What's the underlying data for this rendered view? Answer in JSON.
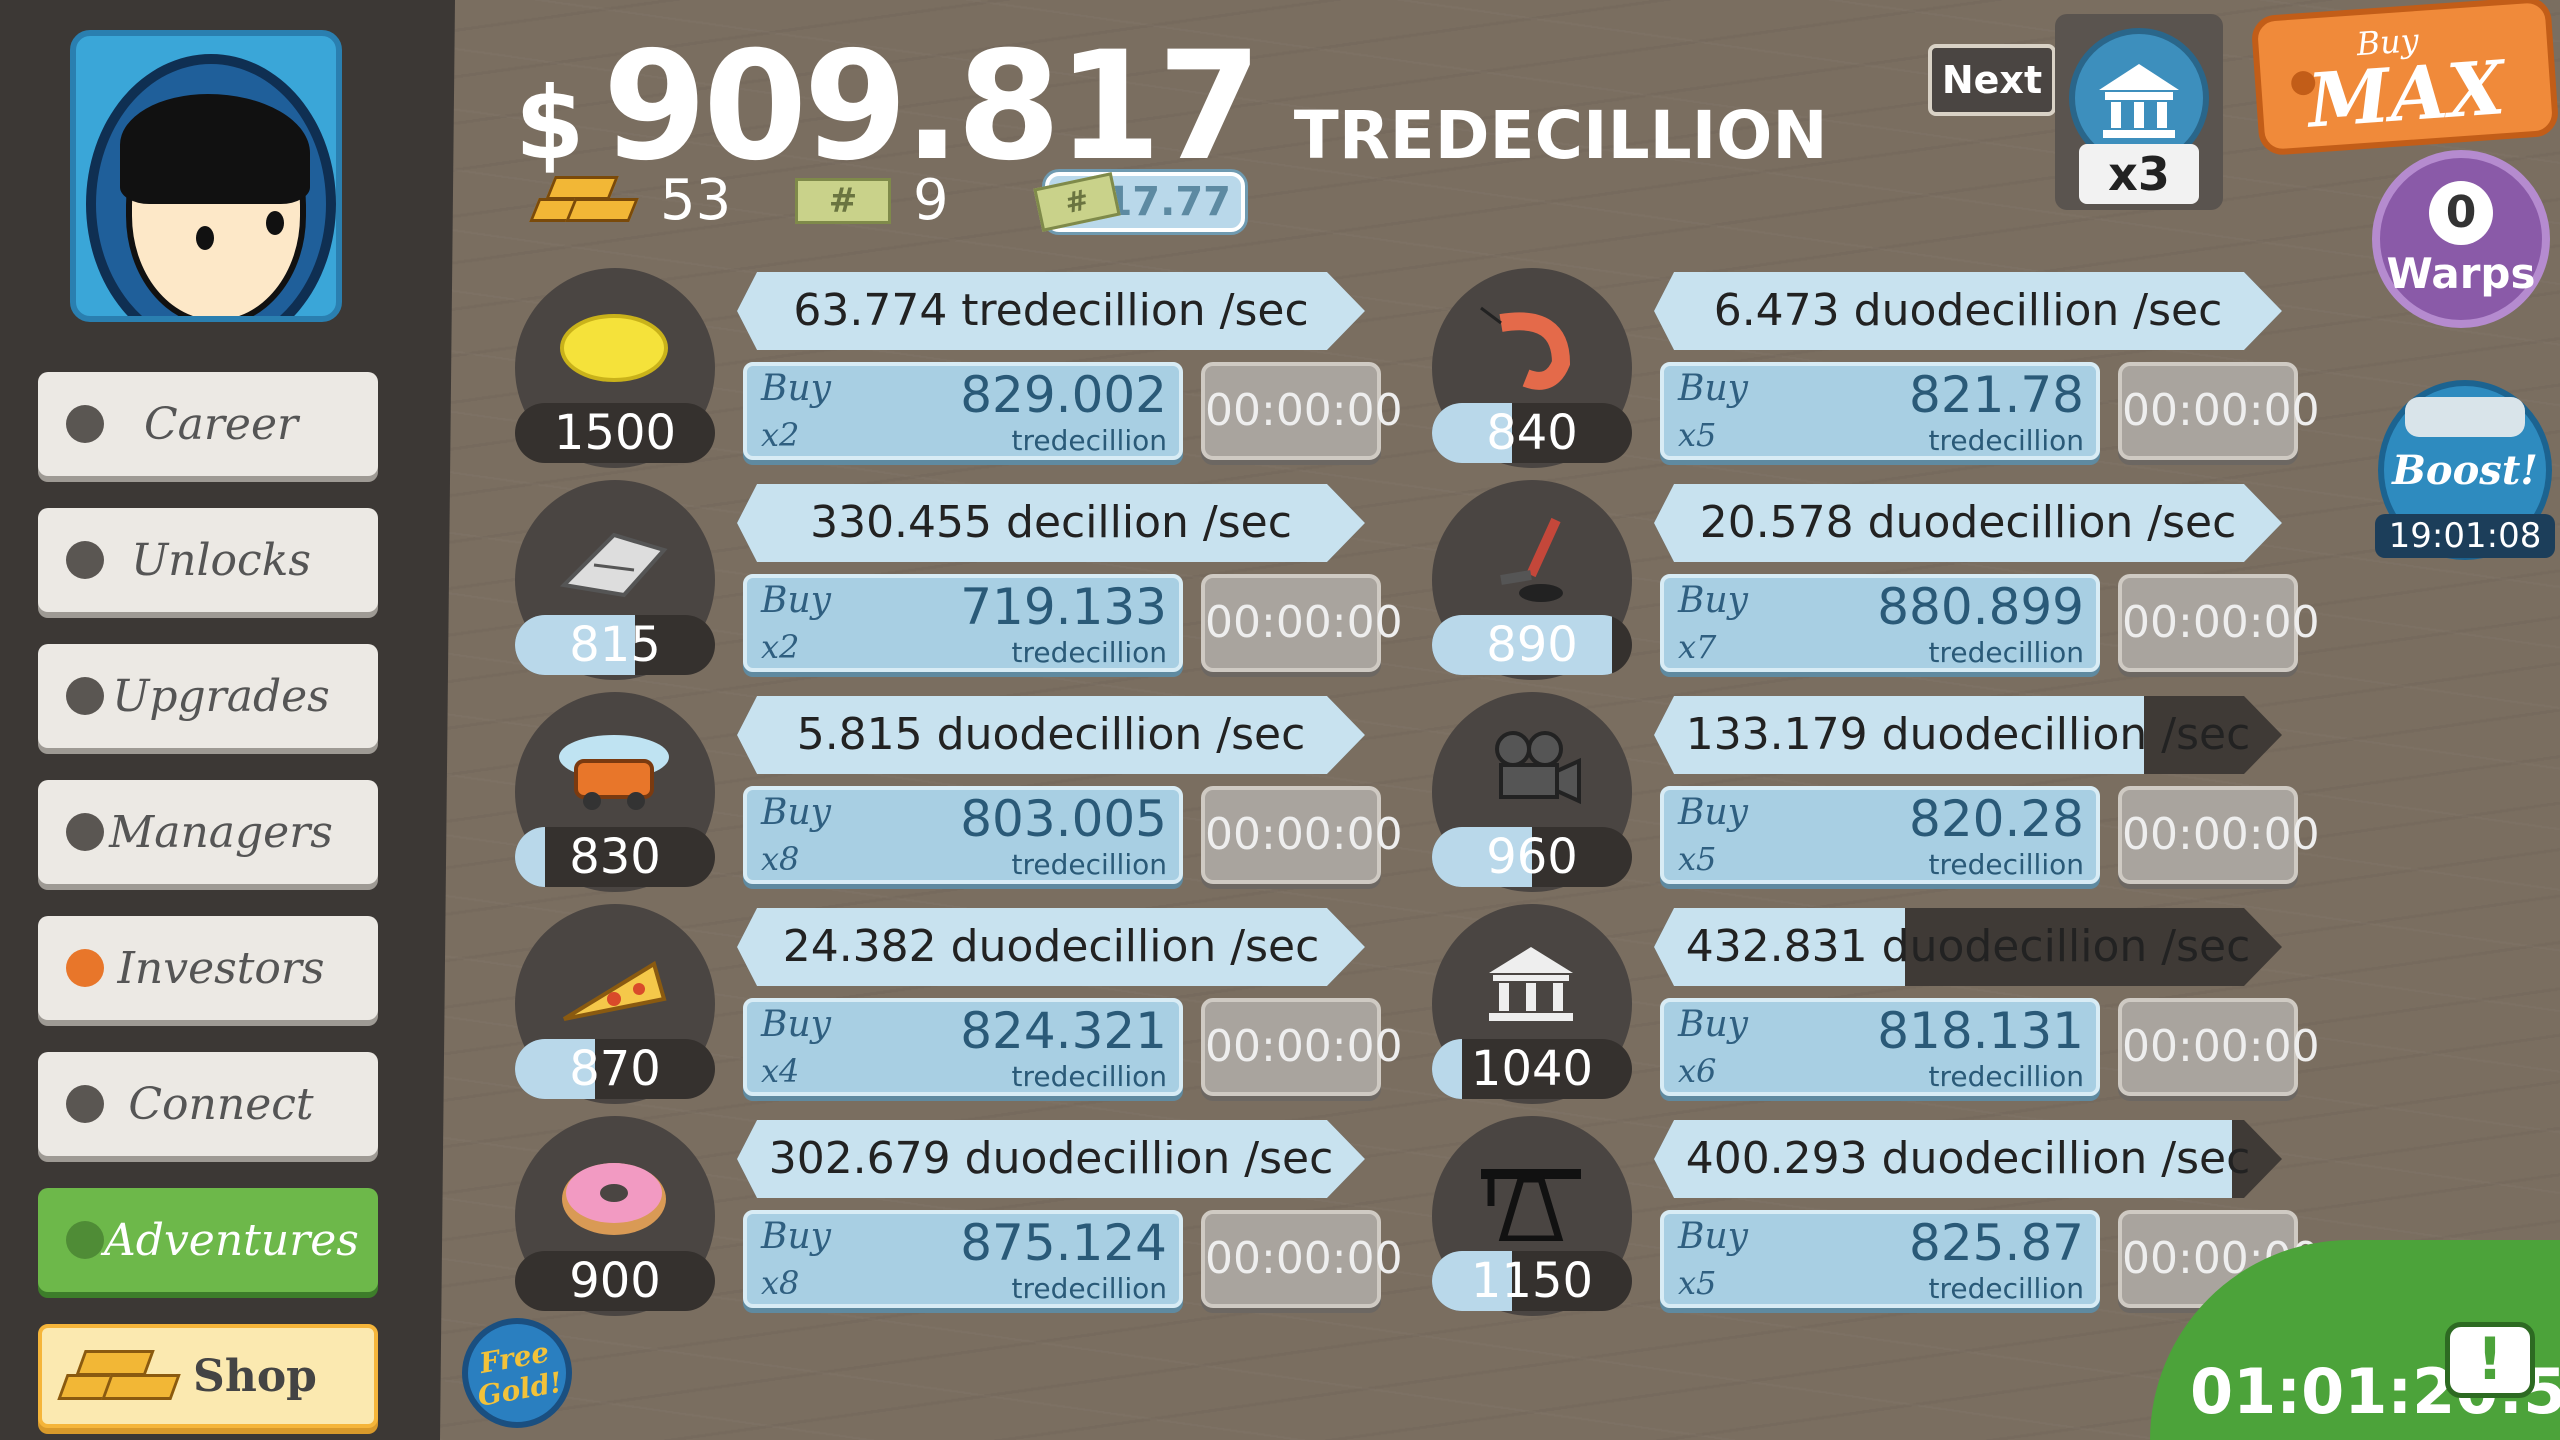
{
  "sidebar": {
    "nav": [
      {
        "label": "Career",
        "style": "normal"
      },
      {
        "label": "Unlocks",
        "style": "normal"
      },
      {
        "label": "Upgrades",
        "style": "normal"
      },
      {
        "label": "Managers",
        "style": "normal"
      },
      {
        "label": "Investors",
        "style": "orange"
      },
      {
        "label": "Connect",
        "style": "normal"
      },
      {
        "label": "Adventures",
        "style": "green"
      },
      {
        "label": "Shop",
        "style": "shop"
      }
    ]
  },
  "header": {
    "currency_sign": "$",
    "money_amount": "909.817",
    "money_unit": "TREDECILLION",
    "gold_count": "53",
    "ticket_count": "9",
    "multiplier": "x17.77",
    "ticket_symbol": "#"
  },
  "next": {
    "label": "Next",
    "multiplier": "x3"
  },
  "buy_max": {
    "small": "Buy",
    "big": "MAX"
  },
  "warps": {
    "count": "0",
    "label": "Warps"
  },
  "boost": {
    "label": "Boost!",
    "timer": "19:01:08"
  },
  "businesses": [
    {
      "icon": "lemon-icon",
      "count": "1500",
      "count_fill": 0,
      "rate": "63.774 tredecillion /sec",
      "rate_fill": 0,
      "buy_mult": "x2",
      "buy_value": "829.002",
      "buy_unit": "tredecillion",
      "timer": "00:00:00"
    },
    {
      "icon": "newspaper-icon",
      "count": "815",
      "count_fill": 0.6,
      "rate": "330.455 decillion /sec",
      "rate_fill": 0,
      "buy_mult": "x2",
      "buy_value": "719.133",
      "buy_unit": "tredecillion",
      "timer": "00:00:00"
    },
    {
      "icon": "car-wash-icon",
      "count": "830",
      "count_fill": 0.15,
      "rate": "5.815 duodecillion /sec",
      "rate_fill": 0,
      "buy_mult": "x8",
      "buy_value": "803.005",
      "buy_unit": "tredecillion",
      "timer": "00:00:00"
    },
    {
      "icon": "pizza-icon",
      "count": "870",
      "count_fill": 0.4,
      "rate": "24.382 duodecillion /sec",
      "rate_fill": 0,
      "buy_mult": "x4",
      "buy_value": "824.321",
      "buy_unit": "tredecillion",
      "timer": "00:00:00"
    },
    {
      "icon": "donut-icon",
      "count": "900",
      "count_fill": 0,
      "rate": "302.679 duodecillion /sec",
      "rate_fill": 0,
      "buy_mult": "x8",
      "buy_value": "875.124",
      "buy_unit": "tredecillion",
      "timer": "00:00:00"
    },
    {
      "icon": "shrimp-icon",
      "count": "840",
      "count_fill": 0.4,
      "rate": "6.473 duodecillion /sec",
      "rate_fill": 0,
      "buy_mult": "x5",
      "buy_value": "821.78",
      "buy_unit": "tredecillion",
      "timer": "00:00:00"
    },
    {
      "icon": "hockey-icon",
      "count": "890",
      "count_fill": 0.9,
      "rate": "20.578 duodecillion /sec",
      "rate_fill": 0,
      "buy_mult": "x7",
      "buy_value": "880.899",
      "buy_unit": "tredecillion",
      "timer": "00:00:00"
    },
    {
      "icon": "movie-camera-icon",
      "count": "960",
      "count_fill": 0.5,
      "rate": "133.179 duodecillion /sec",
      "rate_fill": 0.78,
      "buy_mult": "x5",
      "buy_value": "820.28",
      "buy_unit": "tredecillion",
      "timer": "00:00:00"
    },
    {
      "icon": "bank-icon",
      "count": "1040",
      "count_fill": 0.15,
      "rate": "432.831 duodecillion /sec",
      "rate_fill": 0.4,
      "buy_mult": "x6",
      "buy_value": "818.131",
      "buy_unit": "tredecillion",
      "timer": "00:00:00"
    },
    {
      "icon": "oil-rig-icon",
      "count": "1150",
      "count_fill": 0.4,
      "rate": "400.293 duodecillion /sec",
      "rate_fill": 0.92,
      "buy_mult": "x5",
      "buy_value": "825.87",
      "buy_unit": "tredecillion",
      "timer": "00:00:00"
    }
  ],
  "buy_label": "Buy",
  "free_gold": {
    "line1": "Free",
    "line2": "Gold!"
  },
  "tv": {
    "timer": "01:01:20:5",
    "icon": "!"
  },
  "colors": {
    "accent_blue": "#c8e2ef",
    "orange": "#f08a3a",
    "green": "#4ca33a",
    "purple": "#8a5aa8"
  }
}
